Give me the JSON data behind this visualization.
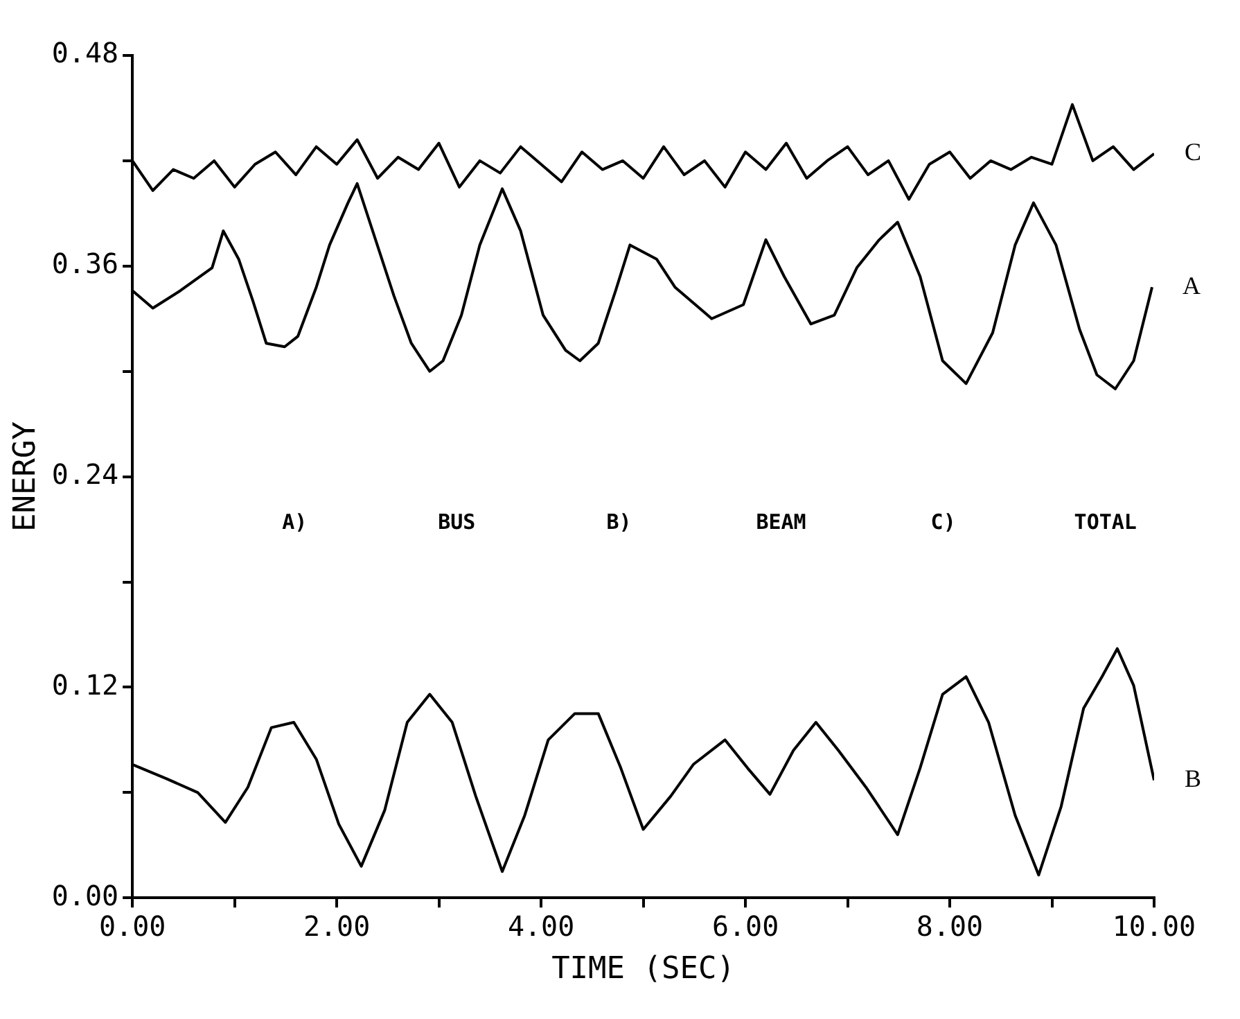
{
  "chart_data": {
    "type": "line",
    "xlabel": "TIME (SEC)",
    "ylabel": "ENERGY",
    "xlim": [
      0,
      10
    ],
    "ylim": [
      0,
      0.48
    ],
    "xticks": [
      {
        "value": 0,
        "label": "0.00"
      },
      {
        "value": 1,
        "label": null
      },
      {
        "value": 2,
        "label": "2.00"
      },
      {
        "value": 3,
        "label": null
      },
      {
        "value": 4,
        "label": "4.00"
      },
      {
        "value": 5,
        "label": null
      },
      {
        "value": 6,
        "label": "6.00"
      },
      {
        "value": 7,
        "label": null
      },
      {
        "value": 8,
        "label": "8.00"
      },
      {
        "value": 9,
        "label": null
      },
      {
        "value": 10,
        "label": "10.00"
      }
    ],
    "yticks": [
      {
        "value": 0,
        "label": "0.00"
      },
      {
        "value": 0.06,
        "label": null
      },
      {
        "value": 0.12,
        "label": "0.12"
      },
      {
        "value": 0.18,
        "label": null
      },
      {
        "value": 0.24,
        "label": "0.24"
      },
      {
        "value": 0.3,
        "label": null
      },
      {
        "value": 0.36,
        "label": "0.36"
      },
      {
        "value": 0.42,
        "label": null
      },
      {
        "value": 0.48,
        "label": "0.48"
      }
    ],
    "grid": false,
    "legend": false,
    "marker": "none",
    "line_style": "solid",
    "series": [
      {
        "name": "C",
        "color": "#000000",
        "x": [
          0,
          0.2,
          0.4,
          0.6,
          0.8,
          1,
          1.2,
          1.4,
          1.6,
          1.8,
          2,
          2.2,
          2.4,
          2.6,
          2.8,
          3,
          3.2,
          3.4,
          3.6,
          3.8,
          4,
          4.2,
          4.4,
          4.6,
          4.8,
          5,
          5.2,
          5.4,
          5.6,
          5.8,
          6,
          6.2,
          6.4,
          6.6,
          6.8,
          7,
          7.2,
          7.4,
          7.6,
          7.8,
          8,
          8.2,
          8.4,
          8.6,
          8.8,
          9,
          9.2,
          9.4,
          9.6,
          9.8,
          10
        ],
        "values": [
          0.42,
          0.403,
          0.415,
          0.41,
          0.42,
          0.405,
          0.418,
          0.425,
          0.412,
          0.428,
          0.418,
          0.432,
          0.41,
          0.422,
          0.415,
          0.43,
          0.405,
          0.42,
          0.413,
          0.428,
          0.418,
          0.408,
          0.425,
          0.415,
          0.42,
          0.41,
          0.428,
          0.412,
          0.42,
          0.405,
          0.425,
          0.415,
          0.43,
          0.41,
          0.42,
          0.428,
          0.412,
          0.42,
          0.398,
          0.418,
          0.425,
          0.41,
          0.42,
          0.415,
          0.422,
          0.418,
          0.452,
          0.42,
          0.428,
          0.415,
          0.424
        ]
      },
      {
        "name": "A",
        "color": "#000000",
        "x": [
          0,
          0.2,
          0.47,
          0.78,
          0.89,
          1.04,
          1.18,
          1.31,
          1.49,
          1.62,
          1.8,
          1.93,
          2.11,
          2.2,
          2.38,
          2.56,
          2.73,
          2.91,
          3.04,
          3.22,
          3.4,
          3.62,
          3.8,
          4.02,
          4.24,
          4.38,
          4.56,
          4.73,
          4.87,
          5.13,
          5.31,
          5.67,
          5.98,
          6.2,
          6.38,
          6.64,
          6.87,
          7.09,
          7.31,
          7.49,
          7.71,
          7.93,
          8.16,
          8.42,
          8.64,
          8.82,
          9.04,
          9.27,
          9.44,
          9.62,
          9.8,
          9.98
        ],
        "values": [
          0.346,
          0.336,
          0.346,
          0.359,
          0.38,
          0.364,
          0.34,
          0.316,
          0.314,
          0.32,
          0.348,
          0.372,
          0.396,
          0.407,
          0.375,
          0.343,
          0.316,
          0.3,
          0.306,
          0.332,
          0.372,
          0.404,
          0.38,
          0.332,
          0.312,
          0.306,
          0.316,
          0.346,
          0.372,
          0.364,
          0.348,
          0.33,
          0.338,
          0.375,
          0.354,
          0.327,
          0.332,
          0.359,
          0.375,
          0.385,
          0.354,
          0.306,
          0.293,
          0.322,
          0.372,
          0.396,
          0.372,
          0.324,
          0.298,
          0.29,
          0.306,
          0.348
        ]
      },
      {
        "name": "B",
        "color": "#000000",
        "x": [
          0,
          0.33,
          0.64,
          0.91,
          1.13,
          1.36,
          1.58,
          1.8,
          2.02,
          2.24,
          2.47,
          2.69,
          2.91,
          3.13,
          3.36,
          3.62,
          3.84,
          4.07,
          4.33,
          4.56,
          4.78,
          5,
          5.27,
          5.49,
          5.8,
          6.02,
          6.24,
          6.47,
          6.69,
          6.91,
          7.18,
          7.49,
          7.71,
          7.93,
          8.16,
          8.38,
          8.64,
          8.87,
          9.09,
          9.31,
          9.49,
          9.64,
          9.8,
          10
        ],
        "values": [
          0.076,
          0.068,
          0.06,
          0.043,
          0.063,
          0.097,
          0.1,
          0.079,
          0.042,
          0.018,
          0.05,
          0.1,
          0.116,
          0.1,
          0.058,
          0.015,
          0.047,
          0.09,
          0.105,
          0.105,
          0.074,
          0.039,
          0.058,
          0.076,
          0.09,
          0.074,
          0.059,
          0.084,
          0.1,
          0.084,
          0.063,
          0.036,
          0.074,
          0.116,
          0.126,
          0.1,
          0.047,
          0.013,
          0.052,
          0.108,
          0.126,
          0.142,
          0.121,
          0.067
        ]
      }
    ],
    "annotations": [
      "A)",
      "BUS",
      "B)",
      "BEAM",
      "C)",
      "TOTAL"
    ]
  }
}
